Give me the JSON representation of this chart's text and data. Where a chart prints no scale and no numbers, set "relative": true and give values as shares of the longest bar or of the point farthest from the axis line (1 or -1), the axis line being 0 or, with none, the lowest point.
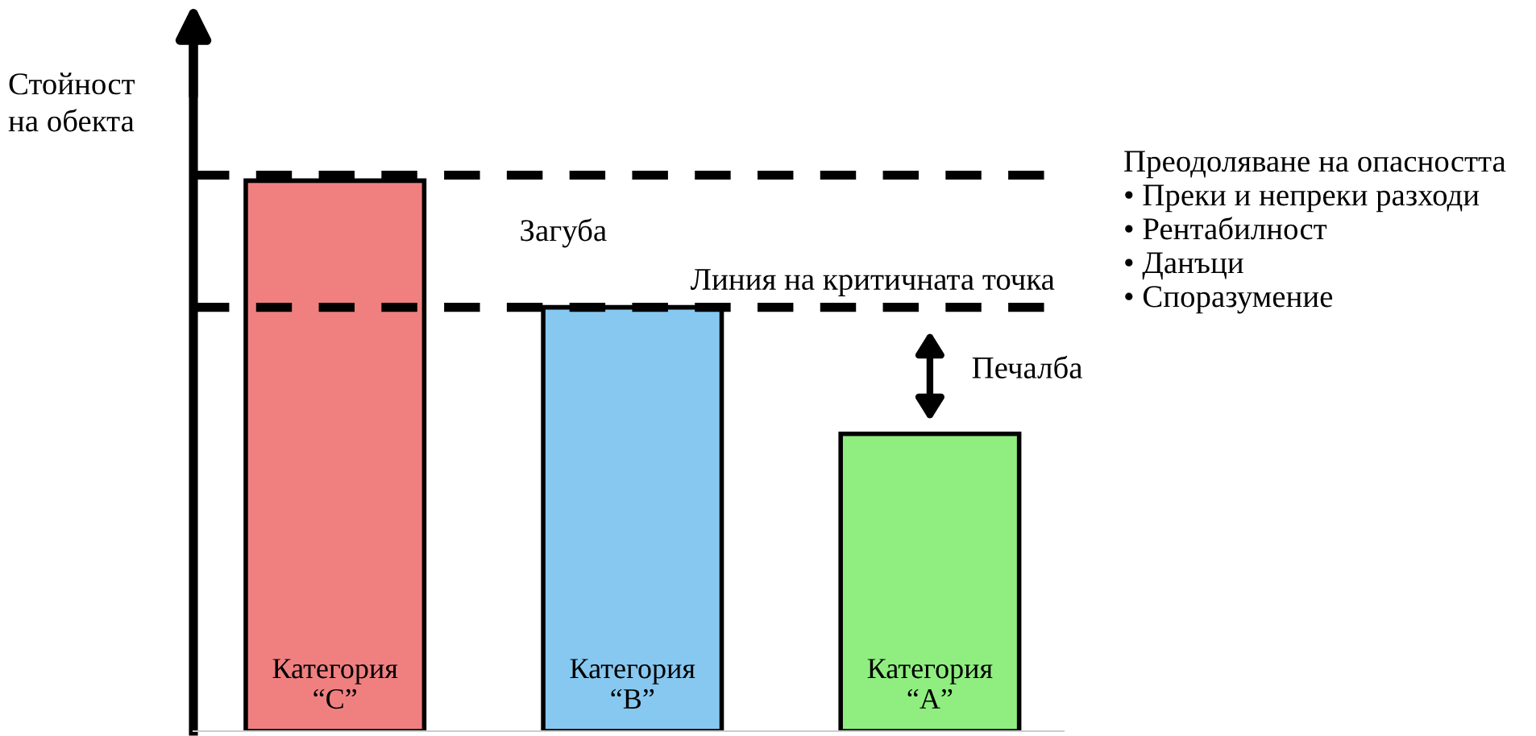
{
  "chart_data": {
    "type": "bar",
    "relative": true,
    "ylabel": "Стойност\nна обекта",
    "categories": [
      "Категория\n“C”",
      "Категория\n“B”",
      "Категория\n“A”"
    ],
    "values": [
      1,
      0.77,
      0.54
    ],
    "colors": [
      "#f08080",
      "#87c8f0",
      "#90ee80"
    ],
    "ref_lines": [
      {
        "axis": "y",
        "value": 1.01,
        "line_style": "dashed",
        "color": "#000000"
      },
      {
        "axis": "y",
        "value": 0.77,
        "label": "Линия на критичната точка",
        "line_style": "dashed",
        "color": "#000000"
      }
    ],
    "annotations": [
      "Загуба",
      "Печалба",
      "Преодоляване на опасността\n• Преки и непреки разходи\n• Рентабилност\n• Данъци\n• Споразумение"
    ],
    "legend": false
  }
}
